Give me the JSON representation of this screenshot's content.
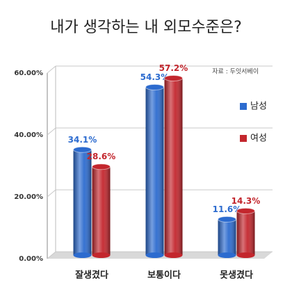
{
  "chart_data": {
    "type": "bar",
    "title": "내가 생각하는 내 외모수준은?",
    "source": "자료 : 두잇서베이",
    "categories": [
      "잘생겼다",
      "보통이다",
      "못생겼다"
    ],
    "series": [
      {
        "name": "남성",
        "color": "#2c6bcf",
        "values": [
          34.1,
          54.3,
          11.6
        ],
        "value_labels": [
          "34.1%",
          "54.3%",
          "11.6%"
        ]
      },
      {
        "name": "여성",
        "color": "#c3262d",
        "values": [
          28.6,
          57.2,
          14.3
        ],
        "value_labels": [
          "28.6%",
          "57.2%",
          "14.3%"
        ]
      }
    ],
    "ylim": [
      0,
      60
    ],
    "yticks": [
      {
        "value": 0,
        "label": "0.00%"
      },
      {
        "value": 20,
        "label": "20.00%"
      },
      {
        "value": 40,
        "label": "40.00%"
      },
      {
        "value": 60,
        "label": "60.00%"
      }
    ],
    "grid": true,
    "legend": "right"
  }
}
